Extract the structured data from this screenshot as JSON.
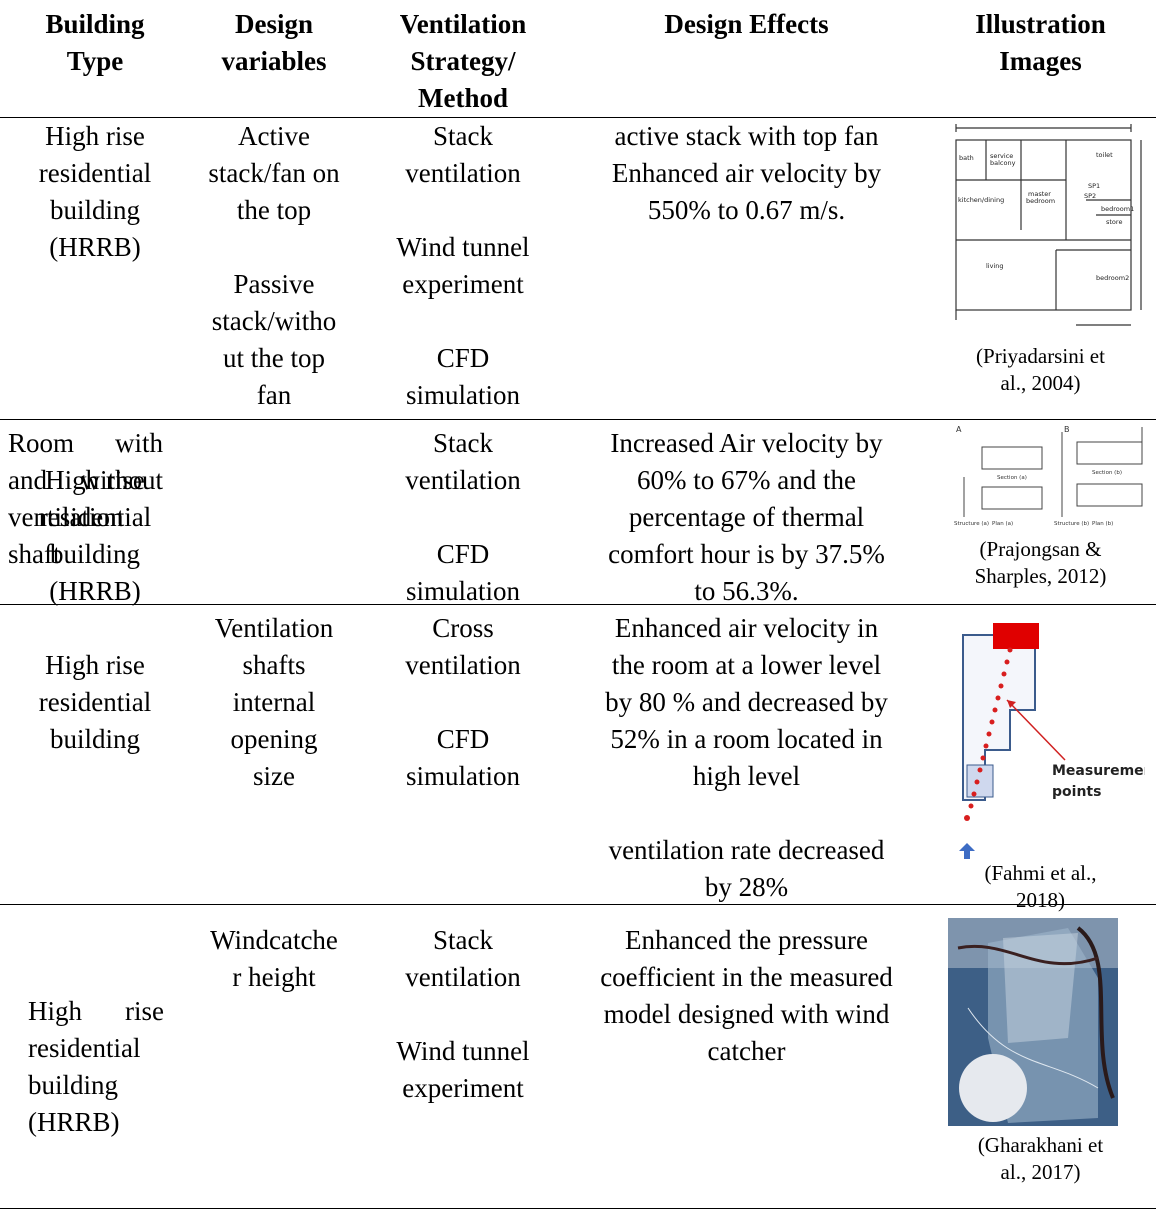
{
  "table": {
    "header": [
      [
        "Building",
        "Type"
      ],
      [
        "Design",
        "variables"
      ],
      [
        "Ventilation",
        "Strategy/",
        "Method"
      ],
      [
        "Design Effects"
      ],
      [
        "Illustration",
        "Images"
      ]
    ],
    "rows": [
      {
        "cells": [
          [
            [
              "High rise",
              "residential",
              "building",
              "(HRRB)"
            ]
          ],
          [
            [
              "Active",
              "stack/fan on",
              "the top"
            ],
            [
              "Passive",
              "stack/witho",
              "ut the top",
              "fan"
            ]
          ],
          [
            [
              "Stack",
              "ventilation"
            ],
            [
              "Wind tunnel",
              "experiment"
            ],
            [
              "CFD",
              "simulation"
            ]
          ],
          [
            [
              "active stack with top fan",
              "Enhanced air velocity by",
              "550% to 0.67 m/s."
            ]
          ]
        ],
        "caption": [
          "(Priyadarsini et",
          "al., 2004)"
        ],
        "image_labels": [
          "bath",
          "service",
          "balcony",
          "toilet",
          "kitchen/dining",
          "master",
          "bedroom",
          "SP1",
          "SP2",
          "bedroom1",
          "store",
          "living",
          "bedroom2"
        ]
      },
      {
        "cells": [
          [
            [
              "High rise",
              "residential",
              "building",
              "(HRRB)"
            ]
          ],
          [
            [
              "Room with",
              "and without",
              "ventilation",
              "shaft"
            ]
          ],
          [
            [
              "Stack",
              "ventilation"
            ],
            [
              "CFD",
              "simulation"
            ]
          ],
          [
            [
              "Increased Air velocity by",
              "60% to 67% and the",
              "percentage of thermal",
              "comfort hour is by 37.5%",
              "to 56.3%."
            ]
          ]
        ],
        "caption": [
          "(Prajongsan &",
          "Sharples, 2012)"
        ],
        "image_labels": [
          "A",
          "B",
          "Section (a)",
          "Section (b)",
          "Structure (a)",
          "Plan (a)",
          "Structure (b)",
          "Plan (b)"
        ]
      },
      {
        "cells": [
          [
            [
              "High rise",
              "residential",
              "building"
            ]
          ],
          [
            [
              "Ventilation",
              "shafts",
              "internal",
              "opening",
              "size"
            ]
          ],
          [
            [
              "Cross",
              "ventilation"
            ],
            [
              "CFD",
              "simulation"
            ]
          ],
          [
            [
              "Enhanced air velocity in",
              "the room at a lower level",
              "by 80 % and decreased by",
              "52% in a room located in",
              "high level"
            ],
            [
              "ventilation rate decreased",
              "by 28%"
            ]
          ]
        ],
        "caption": [
          "(Fahmi et al.,",
          "2018)"
        ],
        "image_labels": [
          "Measurement",
          "points"
        ]
      },
      {
        "cells": [
          [
            [
              "High rise",
              "residential",
              "building",
              "(HRRB)"
            ]
          ],
          [
            [
              "Windcatche",
              "r height"
            ]
          ],
          [
            [
              "Stack",
              "ventilation"
            ],
            [
              "Wind tunnel",
              "experiment"
            ]
          ],
          [
            [
              "Enhanced the pressure",
              "coefficient in the measured",
              "model designed with wind",
              "catcher"
            ]
          ]
        ],
        "caption": [
          "(Gharakhani et",
          "al., 2017)"
        ]
      }
    ]
  }
}
